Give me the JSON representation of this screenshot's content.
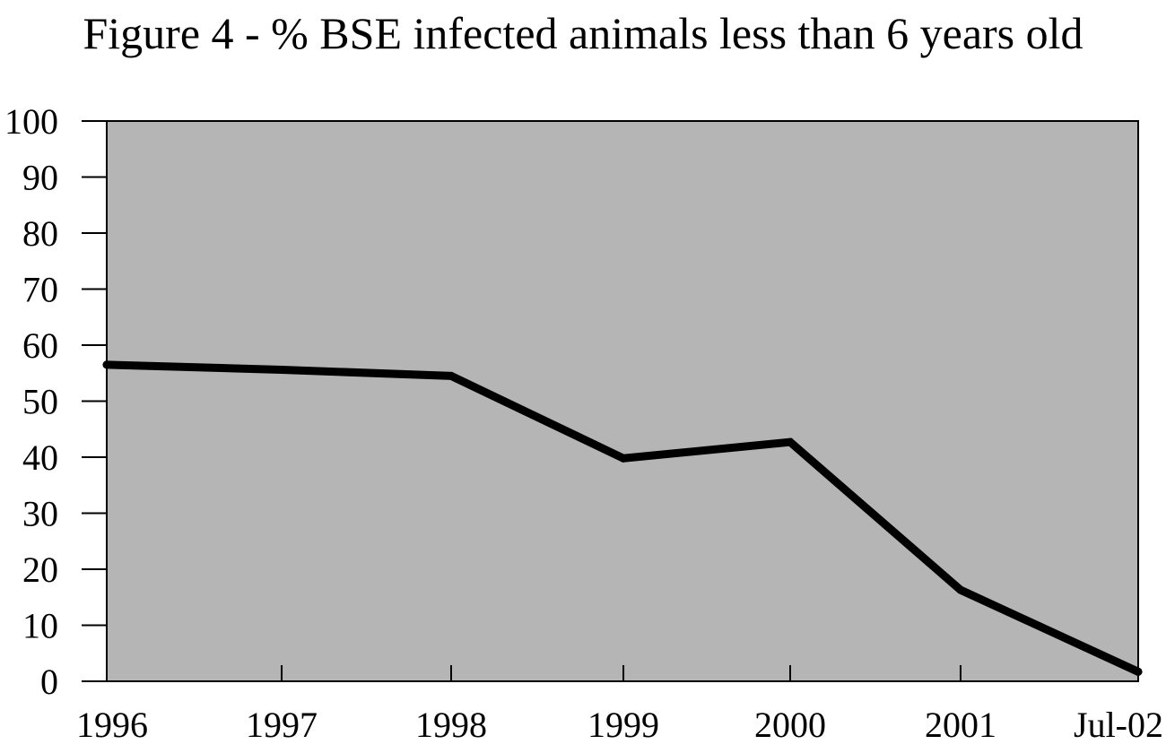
{
  "chart_data": {
    "type": "line",
    "title": "Figure 4 - % BSE infected animals less than 6 years old",
    "xlabel": "",
    "ylabel": "",
    "categories": [
      "1996",
      "1997",
      "1998",
      "1999",
      "2000",
      "2001",
      "Jul-02"
    ],
    "series": [
      {
        "values": [
          56.5,
          55.6,
          54.5,
          39.8,
          42.7,
          16.3,
          1.7
        ]
      }
    ],
    "ylim": [
      0,
      100
    ],
    "yticks": [
      0,
      10,
      20,
      30,
      40,
      50,
      60,
      70,
      80,
      90,
      100
    ],
    "grid": false,
    "plot_background": "#b5b5b5",
    "line_color": "#000000"
  }
}
